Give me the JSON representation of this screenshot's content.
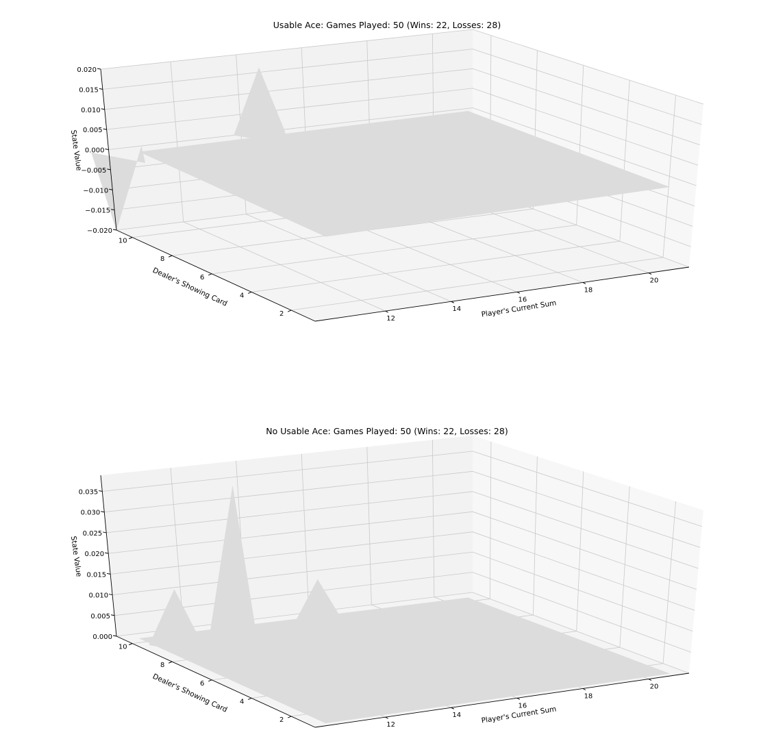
{
  "figure": {
    "pane_colors": {
      "back_left": "#f2f2f2",
      "back_right": "#f7f7f7",
      "floor": "#f4f4f4",
      "grid": "#c8c8c8",
      "surface": "#dcdcdc"
    }
  },
  "chart_data": [
    {
      "type": "surface3d",
      "title": "Usable Ace: Games Played: 50 (Wins: 22, Losses: 28)",
      "xlabel": "Player's Current Sum",
      "ylabel": "Dealer's Showing Card",
      "zlabel": "State Value",
      "x_ticks": [
        "12",
        "14",
        "16",
        "18",
        "20"
      ],
      "y_ticks": [
        "2",
        "4",
        "6",
        "8",
        "10"
      ],
      "z_ticks": [
        "−0.020",
        "−0.015",
        "−0.010",
        "−0.005",
        "0.000",
        "0.005",
        "0.010",
        "0.015",
        "0.020"
      ],
      "xlim": [
        11,
        21
      ],
      "ylim": [
        1,
        10
      ],
      "zlim": [
        -0.02,
        0.02
      ],
      "grid": true,
      "peaks": [
        {
          "x": 11,
          "y": 10,
          "z": -0.02
        },
        {
          "x": 15,
          "y": 10,
          "z": 0.016
        }
      ],
      "baseline_z": 0.0
    },
    {
      "type": "surface3d",
      "title": "No Usable Ace: Games Played: 50 (Wins: 22, Losses: 28)",
      "xlabel": "Player's Current Sum",
      "ylabel": "Dealer's Showing Card",
      "zlabel": "State Value",
      "x_ticks": [
        "12",
        "14",
        "16",
        "18",
        "20"
      ],
      "y_ticks": [
        "2",
        "4",
        "6",
        "8",
        "10"
      ],
      "z_ticks": [
        "0.000",
        "0.005",
        "0.010",
        "0.015",
        "0.020",
        "0.025",
        "0.030",
        "0.035"
      ],
      "xlim": [
        11,
        21
      ],
      "ylim": [
        1,
        10
      ],
      "zlim": [
        0,
        0.04
      ],
      "grid": true,
      "peaks": [
        {
          "x": 12,
          "y": 9,
          "z": 0.013
        },
        {
          "x": 13,
          "y": 8,
          "z": 0.04
        },
        {
          "x": 16,
          "y": 9,
          "z": 0.011
        }
      ],
      "baseline_z": 0.0
    }
  ]
}
